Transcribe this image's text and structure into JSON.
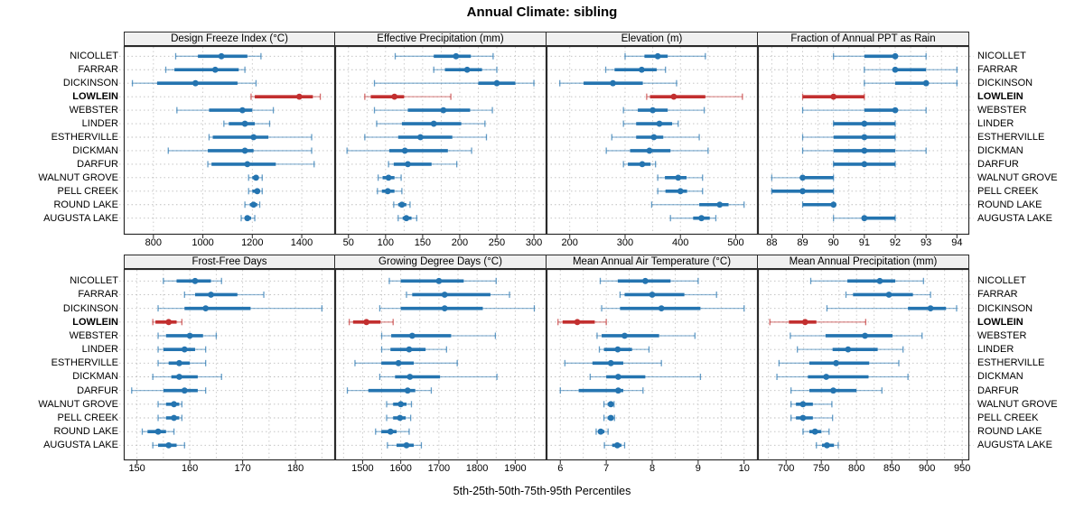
{
  "title": "Annual Climate: sibling",
  "xlabel": "5th-25th-50th-75th-95th Percentiles",
  "percentile_labels": [
    "5th",
    "25th",
    "50th",
    "75th",
    "95th"
  ],
  "highlight_site": "LOWLEIN",
  "sites": [
    "NICOLLET",
    "FARRAR",
    "DICKINSON",
    "LOWLEIN",
    "WEBSTER",
    "LINDER",
    "ESTHERVILLE",
    "DICKMAN",
    "DARFUR",
    "WALNUT GROVE",
    "PELL CREEK",
    "ROUND LAKE",
    "AUGUSTA LAKE"
  ],
  "colors": {
    "series_normal": "#2474b0",
    "series_highlight": "#c22f2f",
    "strip_bg": "#f0f0f0",
    "panel_border": "#2b2b2b",
    "gridline": "#c6c6c6",
    "row_guide": "#bdbdbd",
    "text": "#000000",
    "background": "#ffffff"
  },
  "chart_data": {
    "type": "scatter",
    "variant": "percentile-dotplot-trellis",
    "rows_of_panels": 2,
    "cols_of_panels": 4,
    "legend_position": "none",
    "grid": "dotted",
    "panels": [
      {
        "title": "Design Freeze Index (°C)",
        "slug": "design-freeze-index",
        "xlim": [
          680,
          1535
        ],
        "ticks": [
          800,
          1000,
          1200,
          1400
        ],
        "grid_step": 200,
        "values": [
          [
            890,
            980,
            1075,
            1180,
            1235
          ],
          [
            850,
            885,
            1050,
            1145,
            1170
          ],
          [
            715,
            815,
            970,
            1140,
            1215
          ],
          [
            1195,
            1210,
            1390,
            1445,
            1475
          ],
          [
            895,
            1025,
            1160,
            1200,
            1285
          ],
          [
            1085,
            1105,
            1170,
            1210,
            1270
          ],
          [
            1025,
            1040,
            1205,
            1265,
            1440
          ],
          [
            860,
            1020,
            1170,
            1205,
            1440
          ],
          [
            1020,
            1035,
            1180,
            1295,
            1450
          ],
          [
            1185,
            1200,
            1215,
            1225,
            1240
          ],
          [
            1185,
            1200,
            1220,
            1230,
            1240
          ],
          [
            1170,
            1190,
            1205,
            1220,
            1230
          ],
          [
            1155,
            1170,
            1180,
            1195,
            1210
          ]
        ]
      },
      {
        "title": "Effective Precipitation (mm)",
        "slug": "effective-precipitation",
        "xlim": [
          32,
          317
        ],
        "ticks": [
          50,
          100,
          150,
          200,
          250,
          300
        ],
        "grid_step": 25,
        "values": [
          [
            113,
            165,
            195,
            215,
            245
          ],
          [
            165,
            180,
            210,
            230,
            250
          ],
          [
            85,
            225,
            250,
            275,
            300
          ],
          [
            72,
            80,
            112,
            125,
            188
          ],
          [
            85,
            130,
            178,
            214,
            244
          ],
          [
            88,
            122,
            165,
            202,
            234
          ],
          [
            72,
            117,
            147,
            190,
            236
          ],
          [
            48,
            105,
            126,
            184,
            216
          ],
          [
            104,
            111,
            130,
            162,
            196
          ],
          [
            90,
            96,
            104,
            112,
            121
          ],
          [
            89,
            95,
            103,
            112,
            122
          ],
          [
            111,
            117,
            122,
            128,
            133
          ],
          [
            117,
            123,
            128,
            135,
            142
          ]
        ]
      },
      {
        "title": "Elevation (m)",
        "slug": "elevation",
        "xlim": [
          158,
          540
        ],
        "ticks": [
          200,
          300,
          400,
          500
        ],
        "grid_step": 50,
        "values": [
          [
            300,
            335,
            359,
            377,
            445
          ],
          [
            265,
            281,
            330,
            357,
            373
          ],
          [
            182,
            225,
            278,
            332,
            393
          ],
          [
            339,
            345,
            388,
            445,
            512
          ],
          [
            297,
            323,
            350,
            377,
            443
          ],
          [
            297,
            320,
            362,
            385,
            396
          ],
          [
            276,
            320,
            352,
            369,
            434
          ],
          [
            266,
            309,
            344,
            382,
            450
          ],
          [
            297,
            305,
            331,
            346,
            355
          ],
          [
            359,
            372,
            396,
            411,
            440
          ],
          [
            359,
            373,
            400,
            412,
            440
          ],
          [
            348,
            434,
            471,
            487,
            515
          ],
          [
            382,
            423,
            438,
            453,
            464
          ]
        ]
      },
      {
        "title": "Fraction of Annual PPT as Rain",
        "slug": "fraction-annual-ppt-rain",
        "xlim": [
          87.55,
          94.4
        ],
        "ticks": [
          88,
          89,
          90,
          91,
          92,
          93,
          94
        ],
        "grid_step": 0.5,
        "values": [
          [
            90,
            91,
            92,
            92,
            93
          ],
          [
            91,
            92,
            92,
            93,
            94
          ],
          [
            91,
            92,
            93,
            93,
            94
          ],
          [
            89,
            89,
            90,
            91,
            91
          ],
          [
            89,
            91,
            92,
            92,
            93
          ],
          [
            90,
            90,
            91,
            92,
            92
          ],
          [
            89,
            90,
            91,
            92,
            92
          ],
          [
            89,
            90,
            91,
            92,
            93
          ],
          [
            90,
            90,
            91,
            92,
            92
          ],
          [
            88,
            89,
            89,
            90,
            90
          ],
          [
            88,
            88,
            89,
            90,
            90
          ],
          [
            89,
            89,
            90,
            90,
            90
          ],
          [
            90,
            91,
            91,
            92,
            92
          ]
        ]
      },
      {
        "title": "Frost-Free Days",
        "slug": "frost-free-days",
        "xlim": [
          147.5,
          187.5
        ],
        "ticks": [
          150,
          160,
          170,
          180
        ],
        "grid_step": 5,
        "values": [
          [
            155,
            157.5,
            161,
            164,
            166
          ],
          [
            159,
            161,
            164,
            169,
            174
          ],
          [
            154,
            159,
            163,
            171.5,
            185
          ],
          [
            153,
            153.5,
            156,
            157.5,
            158.5
          ],
          [
            154,
            155.5,
            160,
            162.5,
            165
          ],
          [
            154,
            155,
            159,
            161,
            163
          ],
          [
            154,
            156,
            158,
            160,
            163
          ],
          [
            153,
            156.5,
            158,
            161.5,
            166
          ],
          [
            149,
            155,
            159,
            161.5,
            163
          ],
          [
            154,
            155.5,
            157,
            158,
            158.5
          ],
          [
            154,
            155.5,
            157,
            158,
            158.5
          ],
          [
            151,
            152,
            154,
            155.5,
            157
          ],
          [
            153,
            154,
            156,
            157.5,
            159
          ]
        ]
      },
      {
        "title": "Growing Degree Days (°C)",
        "slug": "growing-degree-days",
        "xlim": [
          1428,
          1982
        ],
        "ticks": [
          1500,
          1600,
          1700,
          1800,
          1900
        ],
        "grid_step": 50,
        "values": [
          [
            1570,
            1600,
            1700,
            1765,
            1850
          ],
          [
            1615,
            1630,
            1715,
            1835,
            1885
          ],
          [
            1545,
            1600,
            1715,
            1815,
            1950
          ],
          [
            1465,
            1475,
            1510,
            1547,
            1580
          ],
          [
            1550,
            1575,
            1630,
            1732,
            1848
          ],
          [
            1550,
            1573,
            1622,
            1665,
            1720
          ],
          [
            1480,
            1549,
            1594,
            1634,
            1748
          ],
          [
            1545,
            1585,
            1624,
            1703,
            1852
          ],
          [
            1460,
            1515,
            1618,
            1638,
            1680
          ],
          [
            1563,
            1580,
            1600,
            1615,
            1628
          ],
          [
            1563,
            1580,
            1598,
            1613,
            1626
          ],
          [
            1534,
            1549,
            1573,
            1589,
            1622
          ],
          [
            1565,
            1589,
            1615,
            1634,
            1654
          ]
        ]
      },
      {
        "title": "Mean Annual Air Temperature (°C)",
        "slug": "mean-annual-air-temperature",
        "xlim": [
          5.7,
          10.3
        ],
        "ticks": [
          6,
          7,
          8,
          9,
          10
        ],
        "grid_step": 0.5,
        "values": [
          [
            6.87,
            7.25,
            7.85,
            8.4,
            9.0
          ],
          [
            7.3,
            7.4,
            8.0,
            8.7,
            9.4
          ],
          [
            6.9,
            7.3,
            8.2,
            9.05,
            10.0
          ],
          [
            5.95,
            6.05,
            6.37,
            6.75,
            7.0
          ],
          [
            6.8,
            6.9,
            7.4,
            8.15,
            8.93
          ],
          [
            6.85,
            6.95,
            7.25,
            7.56,
            7.93
          ],
          [
            6.1,
            6.7,
            7.1,
            7.37,
            8.2
          ],
          [
            6.65,
            7.0,
            7.26,
            7.85,
            9.05
          ],
          [
            6.0,
            6.4,
            7.26,
            7.37,
            7.8
          ],
          [
            6.95,
            7.03,
            7.1,
            7.14,
            7.17
          ],
          [
            6.95,
            7.03,
            7.1,
            7.15,
            7.18
          ],
          [
            6.78,
            6.82,
            6.88,
            6.96,
            7.04
          ],
          [
            6.96,
            7.13,
            7.24,
            7.33,
            7.4
          ]
        ]
      },
      {
        "title": "Mean Annual Precipitation (mm)",
        "slug": "mean-annual-precipitation",
        "xlim": [
          660,
          960
        ],
        "ticks": [
          700,
          750,
          800,
          850,
          900,
          950
        ],
        "grid_step": 25,
        "values": [
          [
            735,
            787,
            833,
            855,
            895
          ],
          [
            785,
            795,
            846,
            880,
            905
          ],
          [
            758,
            873,
            905,
            927,
            942
          ],
          [
            677,
            704,
            727,
            743,
            813
          ],
          [
            706,
            756,
            812,
            851,
            893
          ],
          [
            716,
            766,
            788,
            830,
            866
          ],
          [
            690,
            733,
            771,
            818,
            860
          ],
          [
            687,
            731,
            757,
            817,
            873
          ],
          [
            707,
            733,
            767,
            800,
            836
          ],
          [
            707,
            714,
            724,
            738,
            765
          ],
          [
            707,
            714,
            724,
            738,
            766
          ],
          [
            724,
            733,
            741,
            750,
            761
          ],
          [
            743,
            751,
            758,
            768,
            774
          ]
        ]
      }
    ]
  }
}
